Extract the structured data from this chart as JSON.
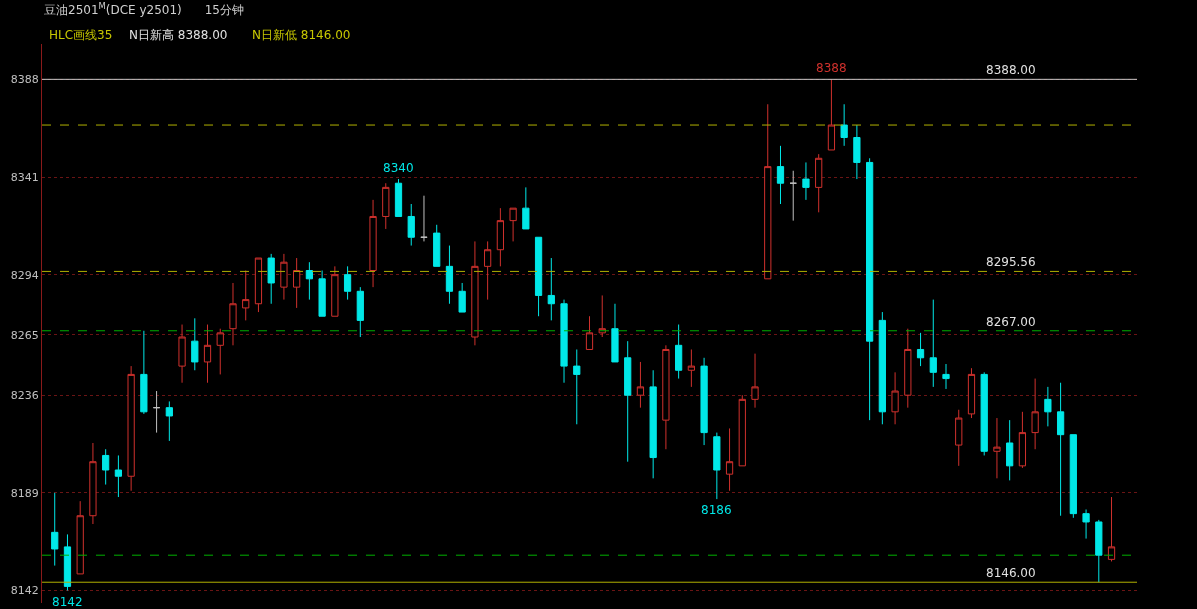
{
  "chart_data": {
    "type": "candlestick",
    "title": "豆油2501$^{M}$(DCE y2501)",
    "subtitle": "15分钟",
    "annotations": [
      "HLC画线35",
      "N日新高 8388.00",
      "N日新低 8146.00",
      {
        "text": "8340",
        "y": 8340
      },
      {
        "text": "8388",
        "y": 8388
      },
      {
        "text": "8186",
        "y": 8186
      },
      {
        "text": "8142",
        "y": 8142
      }
    ],
    "categories": [
      null,
      null,
      null,
      null,
      null,
      null,
      null,
      null,
      null,
      null,
      null,
      null,
      null,
      null,
      null,
      null,
      null,
      null,
      null,
      null,
      null,
      null,
      null,
      null,
      null,
      null,
      null,
      null,
      null,
      null,
      null,
      null,
      null,
      null,
      null,
      null,
      null,
      null,
      null,
      null,
      null,
      null,
      null,
      null,
      null,
      null,
      null,
      null,
      null,
      null,
      null,
      null,
      null,
      null,
      null,
      null,
      null,
      null,
      null,
      null,
      null,
      null,
      null,
      null,
      null,
      null,
      null,
      null,
      null,
      null,
      null,
      null,
      null,
      null,
      null,
      null,
      null,
      null,
      null,
      null,
      null,
      null,
      null,
      null
    ],
    "ohlc": [
      [
        8170,
        8189,
        8154,
        8162
      ],
      [
        8163,
        8169,
        8142,
        8144
      ],
      [
        8150,
        8185,
        8150,
        8178
      ],
      [
        8178,
        8213,
        8174,
        8204
      ],
      [
        8207,
        8210,
        8193,
        8200
      ],
      [
        8200,
        8207,
        8187,
        8197
      ],
      [
        8197,
        8250,
        8190,
        8246
      ],
      [
        8246,
        8267,
        8227,
        8228
      ],
      [
        8230,
        8238,
        8218,
        8230
      ],
      [
        8230,
        8233,
        8214,
        8226
      ],
      [
        8250,
        8270,
        8242,
        8264
      ],
      [
        8262,
        8273,
        8248,
        8252
      ],
      [
        8252,
        8270,
        8242,
        8260
      ],
      [
        8260,
        8268,
        8246,
        8266
      ],
      [
        8268,
        8290,
        8260,
        8280
      ],
      [
        8278,
        8296,
        8272,
        8282
      ],
      [
        8280,
        8302,
        8276,
        8302
      ],
      [
        8302,
        8304,
        8280,
        8290
      ],
      [
        8288,
        8304,
        8282,
        8300
      ],
      [
        8288,
        8302,
        8278,
        8296
      ],
      [
        8296,
        8300,
        8282,
        8292
      ],
      [
        8292,
        8296,
        8274,
        8274
      ],
      [
        8274,
        8298,
        8274,
        8294
      ],
      [
        8294,
        8298,
        8282,
        8286
      ],
      [
        8286,
        8288,
        8264,
        8272
      ],
      [
        8296,
        8330,
        8288,
        8322
      ],
      [
        8322,
        8338,
        8316,
        8336
      ],
      [
        8338,
        8340,
        8322,
        8322
      ],
      [
        8322,
        8328,
        8308,
        8312
      ],
      [
        8312,
        8332,
        8310,
        8312
      ],
      [
        8314,
        8318,
        8298,
        8298
      ],
      [
        8298,
        8308,
        8280,
        8286
      ],
      [
        8286,
        8290,
        8276,
        8276
      ],
      [
        8264,
        8310,
        8260,
        8298
      ],
      [
        8298,
        8310,
        8282,
        8306
      ],
      [
        8306,
        8326,
        8298,
        8320
      ],
      [
        8320,
        8326,
        8310,
        8326
      ],
      [
        8326,
        8336,
        8316,
        8316
      ],
      [
        8312,
        8312,
        8274,
        8284
      ],
      [
        8284,
        8302,
        8272,
        8280
      ],
      [
        8280,
        8282,
        8242,
        8250
      ],
      [
        8250,
        8258,
        8222,
        8246
      ],
      [
        8258,
        8274,
        8258,
        8266
      ],
      [
        8266,
        8284,
        8264,
        8268
      ],
      [
        8268,
        8280,
        8252,
        8252
      ],
      [
        8254,
        8262,
        8204,
        8236
      ],
      [
        8236,
        8252,
        8230,
        8240
      ],
      [
        8240,
        8248,
        8196,
        8206
      ],
      [
        8224,
        8260,
        8210,
        8258
      ],
      [
        8260,
        8270,
        8244,
        8248
      ],
      [
        8248,
        8258,
        8240,
        8250
      ],
      [
        8250,
        8254,
        8212,
        8218
      ],
      [
        8216,
        8218,
        8186,
        8200
      ],
      [
        8198,
        8220,
        8190,
        8204
      ],
      [
        8202,
        8236,
        8202,
        8234
      ],
      [
        8234,
        8256,
        8230,
        8240
      ],
      [
        8292,
        8376,
        8292,
        8346
      ],
      [
        8346,
        8356,
        8328,
        8338
      ],
      [
        8338,
        8344,
        8320,
        8338
      ],
      [
        8340,
        8348,
        8330,
        8336
      ],
      [
        8336,
        8352,
        8324,
        8350
      ],
      [
        8354,
        8388,
        8354,
        8366
      ],
      [
        8366,
        8376,
        8356,
        8360
      ],
      [
        8360,
        8366,
        8340,
        8348
      ],
      [
        8348,
        8350,
        8224,
        8262
      ],
      [
        8272,
        8276,
        8222,
        8228
      ],
      [
        8228,
        8247,
        8222,
        8238
      ],
      [
        8236,
        8268,
        8230,
        8258
      ],
      [
        8258,
        8266,
        8250,
        8254
      ],
      [
        8254,
        8282,
        8240,
        8247
      ],
      [
        8246,
        8251,
        8239,
        8244
      ],
      [
        8212,
        8229,
        8202,
        8225
      ],
      [
        8227,
        8249,
        8225,
        8246
      ],
      [
        8246,
        8247,
        8207,
        8209
      ],
      [
        8209,
        8225,
        8196,
        8211
      ],
      [
        8213,
        8224,
        8195,
        8202
      ],
      [
        8202,
        8228,
        8201,
        8218
      ],
      [
        8218,
        8244,
        8210,
        8228
      ],
      [
        8234,
        8240,
        8221,
        8228
      ],
      [
        8228,
        8242,
        8178,
        8217
      ],
      [
        8217,
        8217,
        8177,
        8179
      ],
      [
        8179,
        8181,
        8167,
        8175
      ],
      [
        8175,
        8176,
        8146,
        8159
      ],
      [
        8157,
        8187,
        8156,
        8163
      ]
    ],
    "colors": [
      "#00e8e8",
      "#00e8e8",
      "#d0312d",
      "#d0312d",
      "#00e8e8",
      "#00e8e8",
      "#d0312d",
      "#00e8e8",
      "#c0c0c0",
      "#00e8e8",
      "#d0312d",
      "#00e8e8",
      "#d0312d",
      "#d0312d",
      "#d0312d",
      "#d0312d",
      "#d0312d",
      "#00e8e8",
      "#d0312d",
      "#d0312d",
      "#00e8e8",
      "#00e8e8",
      "#d0312d",
      "#00e8e8",
      "#00e8e8",
      "#d0312d",
      "#d0312d",
      "#00e8e8",
      "#00e8e8",
      "#c0c0c0",
      "#00e8e8",
      "#00e8e8",
      "#00e8e8",
      "#d0312d",
      "#d0312d",
      "#d0312d",
      "#d0312d",
      "#00e8e8",
      "#00e8e8",
      "#00e8e8",
      "#00e8e8",
      "#00e8e8",
      "#d0312d",
      "#d0312d",
      "#00e8e8",
      "#00e8e8",
      "#d0312d",
      "#00e8e8",
      "#d0312d",
      "#00e8e8",
      "#d0312d",
      "#00e8e8",
      "#00e8e8",
      "#d0312d",
      "#d0312d",
      "#d0312d",
      "#d0312d",
      "#00e8e8",
      "#c0c0c0",
      "#00e8e8",
      "#d0312d",
      "#d0312d",
      "#00e8e8",
      "#00e8e8",
      "#00e8e8",
      "#00e8e8",
      "#d0312d",
      "#d0312d",
      "#00e8e8",
      "#00e8e8",
      "#00e8e8",
      "#d0312d",
      "#d0312d",
      "#00e8e8",
      "#d0312d",
      "#00e8e8",
      "#d0312d",
      "#d0312d",
      "#00e8e8",
      "#00e8e8",
      "#00e8e8",
      "#00e8e8",
      "#00e8e8",
      "#d0312d"
    ],
    "ref_lines": [
      {
        "axis": "y",
        "value": 8388,
        "label": "8388.00",
        "color": "#c8c8c8",
        "line_style": "solid"
      },
      {
        "axis": "y",
        "value": 8366,
        "color": "#b0b000",
        "line_style": "dashed"
      },
      {
        "axis": "y",
        "value": 8295.56,
        "label": "8295.56",
        "color": "#b0b000",
        "line_style": "dashed"
      },
      {
        "axis": "y",
        "value": 8267,
        "label": "8267.00",
        "color": "#00b000",
        "line_style": "dashed"
      },
      {
        "axis": "y",
        "value": 8159,
        "color": "#00b000",
        "line_style": "dashed"
      },
      {
        "axis": "y",
        "value": 8146,
        "label": "8146.00",
        "color": "#b0b000",
        "line_style": "solid"
      }
    ],
    "ylim": [
      8136,
      8405
    ],
    "yticks": [
      8142,
      8189,
      8236,
      8265,
      8294,
      8341,
      8388
    ],
    "grid": "y",
    "tick_labels": "y"
  }
}
